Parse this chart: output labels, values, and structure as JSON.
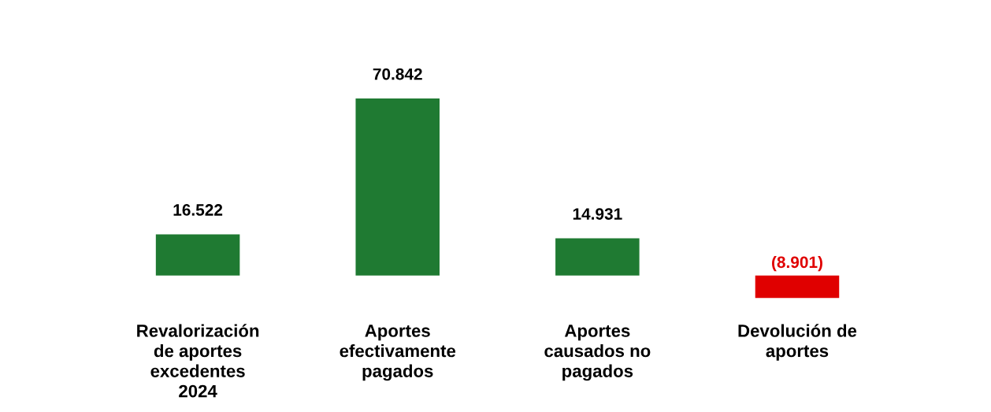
{
  "chart_data": {
    "type": "bar",
    "categories": [
      "Revalorización\nde aportes\nexcedentes\n2024",
      "Aportes\nefectivamente\npagados",
      "Aportes\ncausados no\npagados",
      "Devolución de\naportes"
    ],
    "values": [
      16522,
      70842,
      14931,
      -8901
    ],
    "colors": [
      "#1f7a32",
      "#1f7a32",
      "#1f7a32",
      "#e00000"
    ],
    "value_labels": [
      "16.522",
      "70.842",
      "14.931",
      "(8.901)"
    ],
    "grid": false,
    "legend": false
  }
}
